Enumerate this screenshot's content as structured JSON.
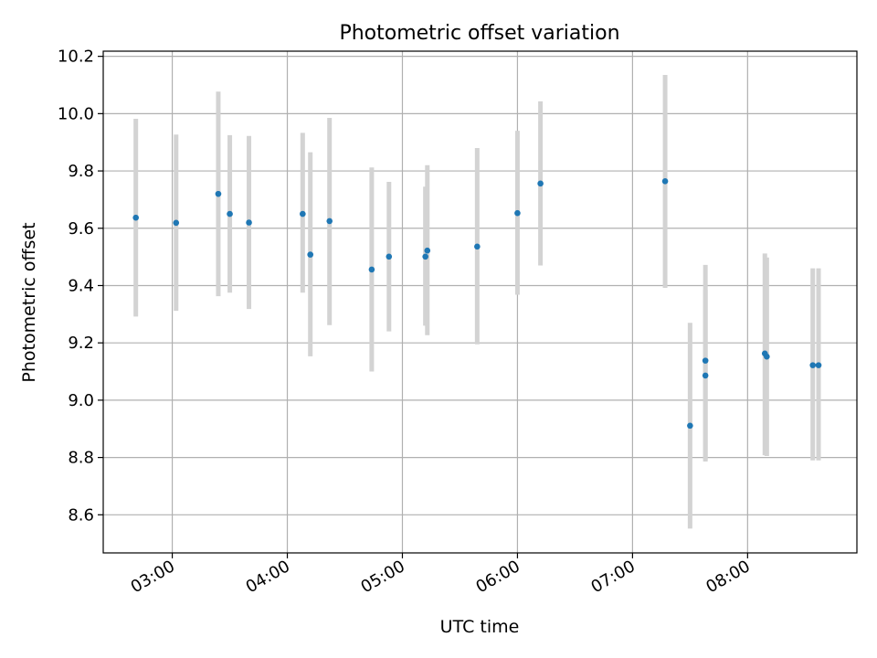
{
  "chart_data": {
    "type": "scatter",
    "title": "Photometric offset variation",
    "xlabel": "UTC time",
    "ylabel": "Photometric offset",
    "x_unit": "UTC hh:mm",
    "xlim": [
      "02:24",
      "08:57"
    ],
    "ylim": [
      8.467,
      10.218
    ],
    "grid": true,
    "x_ticks": [
      "03:00",
      "04:00",
      "05:00",
      "06:00",
      "07:00",
      "08:00"
    ],
    "y_ticks": [
      8.6,
      8.8,
      9.0,
      9.2,
      9.4,
      9.6,
      9.8,
      10.0,
      10.2
    ],
    "y_tick_labels": [
      "8.6",
      "8.8",
      "9.0",
      "9.2",
      "9.4",
      "9.6",
      "9.8",
      "10.0",
      "10.2"
    ],
    "series": [
      {
        "color": "#1f77b4",
        "errorbar_color": "#d3d3d3",
        "points": [
          {
            "x": "02:41",
            "y": 9.637,
            "err_low": 9.292,
            "err_high": 9.982
          },
          {
            "x": "03:02",
            "y": 9.619,
            "err_low": 9.312,
            "err_high": 9.927
          },
          {
            "x": "03:24",
            "y": 9.72,
            "err_low": 9.363,
            "err_high": 10.077
          },
          {
            "x": "03:30",
            "y": 9.65,
            "err_low": 9.375,
            "err_high": 9.925
          },
          {
            "x": "03:40",
            "y": 9.62,
            "err_low": 9.318,
            "err_high": 9.922
          },
          {
            "x": "04:08",
            "y": 9.65,
            "err_low": 9.375,
            "err_high": 9.933
          },
          {
            "x": "04:12",
            "y": 9.508,
            "err_low": 9.153,
            "err_high": 9.865
          },
          {
            "x": "04:22",
            "y": 9.625,
            "err_low": 9.262,
            "err_high": 9.985
          },
          {
            "x": "04:44",
            "y": 9.456,
            "err_low": 9.1,
            "err_high": 9.812
          },
          {
            "x": "04:53",
            "y": 9.501,
            "err_low": 9.24,
            "err_high": 9.762
          },
          {
            "x": "05:12",
            "y": 9.501,
            "err_low": 9.26,
            "err_high": 9.745
          },
          {
            "x": "05:13",
            "y": 9.522,
            "err_low": 9.227,
            "err_high": 9.82
          },
          {
            "x": "05:39",
            "y": 9.536,
            "err_low": 9.195,
            "err_high": 9.88
          },
          {
            "x": "06:00",
            "y": 9.653,
            "err_low": 9.368,
            "err_high": 9.94
          },
          {
            "x": "06:12",
            "y": 9.756,
            "err_low": 9.47,
            "err_high": 10.043
          },
          {
            "x": "07:17",
            "y": 9.764,
            "err_low": 9.392,
            "err_high": 10.135
          },
          {
            "x": "07:30",
            "y": 8.911,
            "err_low": 8.552,
            "err_high": 9.27
          },
          {
            "x": "07:38",
            "y": 9.138,
            "err_low": 8.793,
            "err_high": 9.472
          },
          {
            "x": "07:38",
            "y": 9.086,
            "err_low": 8.786,
            "err_high": 9.386
          },
          {
            "x": "08:09",
            "y": 9.163,
            "err_low": 8.808,
            "err_high": 9.512
          },
          {
            "x": "08:10",
            "y": 9.152,
            "err_low": 8.805,
            "err_high": 9.498
          },
          {
            "x": "08:34",
            "y": 9.122,
            "err_low": 8.79,
            "err_high": 9.46
          },
          {
            "x": "08:37",
            "y": 9.122,
            "err_low": 8.79,
            "err_high": 9.46
          }
        ]
      }
    ]
  }
}
